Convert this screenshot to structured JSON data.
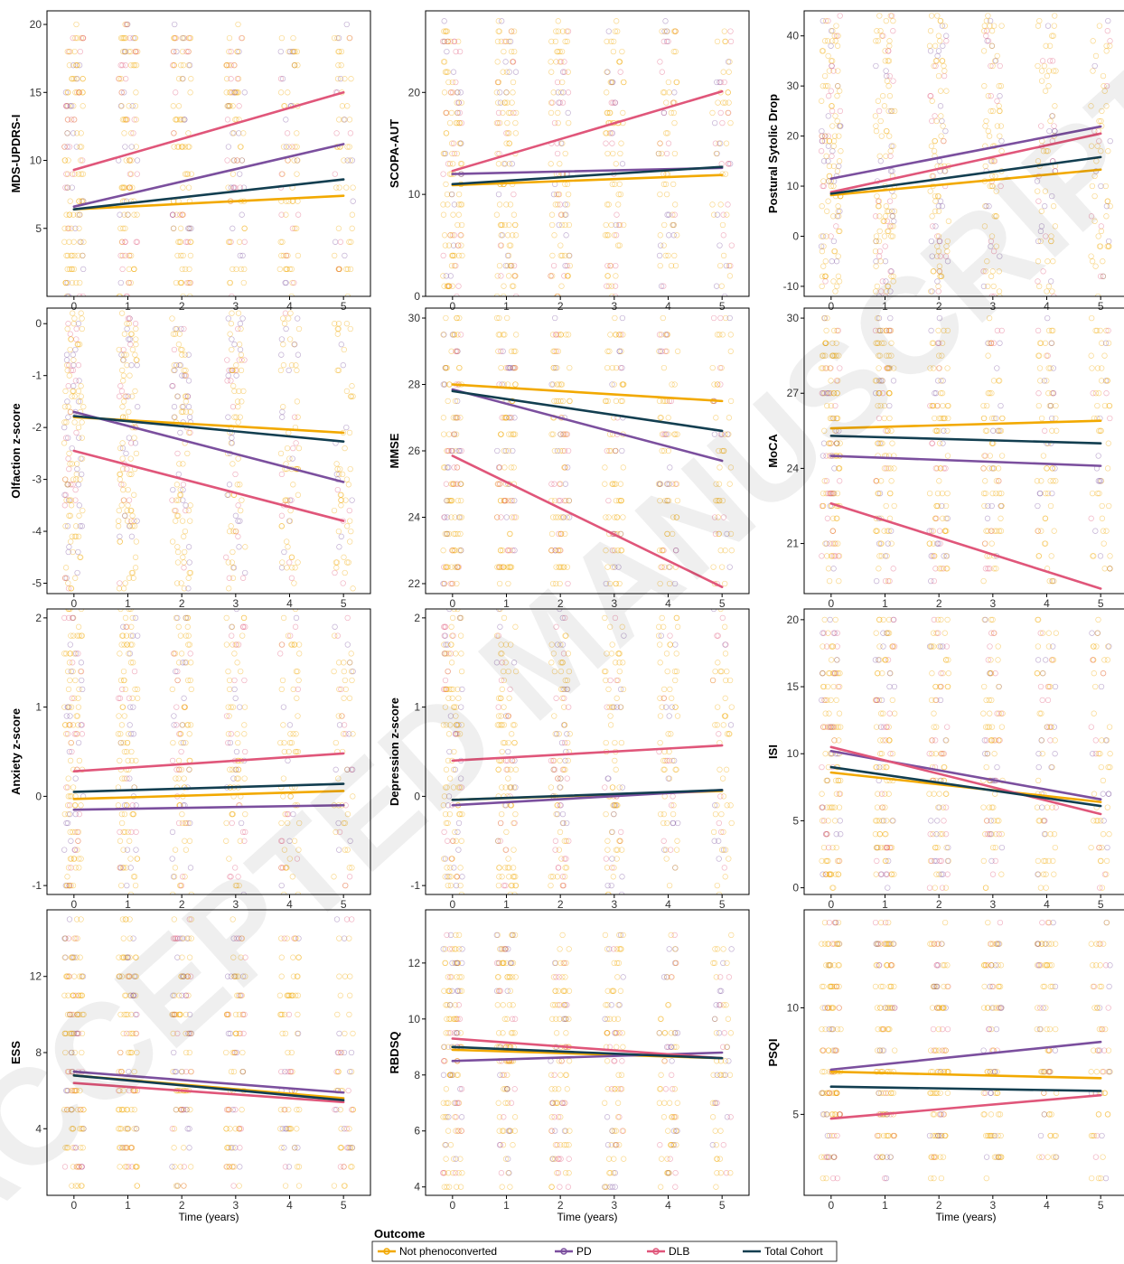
{
  "watermark": "ACCEPTED MANUSCRIPT",
  "colors": {
    "not_phenoconverted": "#F2A900",
    "pd": "#7B4F9E",
    "dlb": "#E0567A",
    "total_cohort": "#123E50",
    "jitter_mix": [
      "#F2A900",
      "#F2A900",
      "#F2A900",
      "#F2A900",
      "#7B4F9E",
      "#E0567A"
    ]
  },
  "legend": {
    "title": "Outcome",
    "items": [
      "Not phenoconverted",
      "PD",
      "DLB",
      "Total Cohort"
    ]
  },
  "chart_data": [
    {
      "type": "scatter",
      "ylabel": "MDS-UPDRS-I",
      "xlabel": "",
      "x_ticks": [
        0,
        1,
        2,
        3,
        4,
        5
      ],
      "xlim": [
        -0.5,
        5.5
      ],
      "ylim": [
        0,
        21
      ],
      "y_ticks": [
        5,
        10,
        15,
        20
      ],
      "point_range": [
        0,
        20
      ],
      "point_step": 1,
      "series": [
        {
          "name": "Not phenoconverted",
          "start": 6.4,
          "end": 7.4
        },
        {
          "name": "PD",
          "start": 6.6,
          "end": 11.2
        },
        {
          "name": "DLB",
          "start": 9.3,
          "end": 15.0
        },
        {
          "name": "Total Cohort",
          "start": 6.4,
          "end": 8.6
        }
      ]
    },
    {
      "type": "scatter",
      "ylabel": "SCOPA-AUT",
      "xlabel": "",
      "x_ticks": [
        0,
        1,
        2,
        3,
        4,
        5
      ],
      "xlim": [
        -0.5,
        5.5
      ],
      "ylim": [
        0,
        28
      ],
      "y_ticks": [
        0,
        10,
        20
      ],
      "point_range": [
        0,
        27
      ],
      "point_step": 1,
      "series": [
        {
          "name": "Not phenoconverted",
          "start": 10.9,
          "end": 11.9
        },
        {
          "name": "PD",
          "start": 12.0,
          "end": 12.6
        },
        {
          "name": "DLB",
          "start": 12.3,
          "end": 20.1
        },
        {
          "name": "Total Cohort",
          "start": 11.0,
          "end": 12.7
        }
      ]
    },
    {
      "type": "scatter",
      "ylabel": "Postural Sytolic Drop",
      "xlabel": "",
      "x_ticks": [
        0,
        1,
        2,
        3,
        4,
        5
      ],
      "xlim": [
        -0.5,
        5.5
      ],
      "ylim": [
        -12,
        45
      ],
      "y_ticks": [
        -10,
        0,
        10,
        20,
        30,
        40
      ],
      "point_range": [
        -12,
        44
      ],
      "point_step": 1,
      "series": [
        {
          "name": "Not phenoconverted",
          "start": 8.2,
          "end": 13.3
        },
        {
          "name": "PD",
          "start": 11.5,
          "end": 21.9
        },
        {
          "name": "DLB",
          "start": 8.8,
          "end": 20.5
        },
        {
          "name": "Total Cohort",
          "start": 8.5,
          "end": 15.8
        }
      ]
    },
    {
      "type": "scatter",
      "ylabel": "Olfaction z-score",
      "xlabel": "",
      "x_ticks": [
        0,
        1,
        2,
        3,
        4,
        5
      ],
      "xlim": [
        -0.5,
        5.5
      ],
      "ylim": [
        -5.2,
        0.3
      ],
      "y_ticks": [
        -5,
        -4,
        -3,
        -2,
        -1,
        0
      ],
      "point_range": [
        -5.1,
        0.2
      ],
      "point_step": 0.1,
      "series": [
        {
          "name": "Not phenoconverted",
          "start": -1.8,
          "end": -2.1
        },
        {
          "name": "PD",
          "start": -1.7,
          "end": -3.05
        },
        {
          "name": "DLB",
          "start": -2.45,
          "end": -3.8
        },
        {
          "name": "Total Cohort",
          "start": -1.78,
          "end": -2.27
        }
      ]
    },
    {
      "type": "scatter",
      "ylabel": "MMSE",
      "xlabel": "",
      "x_ticks": [
        0,
        1,
        2,
        3,
        4,
        5
      ],
      "xlim": [
        -0.5,
        5.5
      ],
      "ylim": [
        21.7,
        30.3
      ],
      "y_ticks": [
        22,
        24,
        26,
        28,
        30
      ],
      "point_range": [
        22,
        30
      ],
      "point_step": 0.5,
      "series": [
        {
          "name": "Not phenoconverted",
          "start": 28.0,
          "end": 27.5
        },
        {
          "name": "PD",
          "start": 27.85,
          "end": 25.7
        },
        {
          "name": "DLB",
          "start": 25.85,
          "end": 21.9
        },
        {
          "name": "Total Cohort",
          "start": 27.8,
          "end": 26.6
        }
      ]
    },
    {
      "type": "scatter",
      "ylabel": "MoCA",
      "xlabel": "",
      "x_ticks": [
        0,
        1,
        2,
        3,
        4,
        5
      ],
      "xlim": [
        -0.5,
        5.5
      ],
      "ylim": [
        19,
        30.4
      ],
      "y_ticks": [
        21,
        24,
        27,
        30
      ],
      "point_range": [
        19.5,
        30
      ],
      "point_step": 0.5,
      "series": [
        {
          "name": "Not phenoconverted",
          "start": 25.6,
          "end": 25.9
        },
        {
          "name": "PD",
          "start": 24.5,
          "end": 24.1
        },
        {
          "name": "DLB",
          "start": 22.6,
          "end": 19.2
        },
        {
          "name": "Total Cohort",
          "start": 25.3,
          "end": 25.0
        }
      ]
    },
    {
      "type": "scatter",
      "ylabel": "Anxiety z-score",
      "xlabel": "",
      "x_ticks": [
        0,
        1,
        2,
        3,
        4,
        5
      ],
      "xlim": [
        -0.5,
        5.5
      ],
      "ylim": [
        -1.1,
        2.1
      ],
      "y_ticks": [
        -1,
        0,
        1,
        2
      ],
      "point_range": [
        -1.1,
        2.1
      ],
      "point_step": 0.1,
      "series": [
        {
          "name": "Not phenoconverted",
          "start": -0.03,
          "end": 0.06
        },
        {
          "name": "PD",
          "start": -0.15,
          "end": -0.1
        },
        {
          "name": "DLB",
          "start": 0.28,
          "end": 0.48
        },
        {
          "name": "Total Cohort",
          "start": 0.05,
          "end": 0.14
        }
      ]
    },
    {
      "type": "scatter",
      "ylabel": "Depression z-score",
      "xlabel": "",
      "x_ticks": [
        0,
        1,
        2,
        3,
        4,
        5
      ],
      "xlim": [
        -0.5,
        5.5
      ],
      "ylim": [
        -1.1,
        2.1
      ],
      "y_ticks": [
        -1,
        0,
        1,
        2
      ],
      "point_range": [
        -1.1,
        2.1
      ],
      "point_step": 0.1,
      "series": [
        {
          "name": "Not phenoconverted",
          "start": -0.04,
          "end": 0.06
        },
        {
          "name": "PD",
          "start": -0.1,
          "end": 0.07
        },
        {
          "name": "DLB",
          "start": 0.4,
          "end": 0.57
        },
        {
          "name": "Total Cohort",
          "start": -0.04,
          "end": 0.07
        }
      ]
    },
    {
      "type": "scatter",
      "ylabel": "ISI",
      "xlabel": "",
      "x_ticks": [
        0,
        1,
        2,
        3,
        4,
        5
      ],
      "xlim": [
        -0.5,
        5.5
      ],
      "ylim": [
        -0.5,
        20.8
      ],
      "y_ticks": [
        0,
        5,
        10,
        15,
        20
      ],
      "point_range": [
        0,
        20
      ],
      "point_step": 1,
      "series": [
        {
          "name": "Not phenoconverted",
          "start": 8.6,
          "end": 6.4
        },
        {
          "name": "PD",
          "start": 10.2,
          "end": 6.6
        },
        {
          "name": "DLB",
          "start": 10.5,
          "end": 5.5
        },
        {
          "name": "Total Cohort",
          "start": 9.0,
          "end": 6.1
        }
      ]
    },
    {
      "type": "scatter",
      "ylabel": "ESS",
      "xlabel": "Time (years)",
      "x_ticks": [
        0,
        1,
        2,
        3,
        4,
        5
      ],
      "xlim": [
        -0.5,
        5.5
      ],
      "ylim": [
        0.5,
        15.5
      ],
      "y_ticks": [
        4,
        8,
        12
      ],
      "point_range": [
        1,
        15
      ],
      "point_step": 1,
      "series": [
        {
          "name": "Not phenoconverted",
          "start": 6.8,
          "end": 5.6
        },
        {
          "name": "PD",
          "start": 7.0,
          "end": 5.9
        },
        {
          "name": "DLB",
          "start": 6.4,
          "end": 5.4
        },
        {
          "name": "Total Cohort",
          "start": 6.8,
          "end": 5.5
        }
      ]
    },
    {
      "type": "scatter",
      "ylabel": "RBDSQ",
      "xlabel": "Time (years)",
      "x_ticks": [
        0,
        1,
        2,
        3,
        4,
        5
      ],
      "xlim": [
        -0.5,
        5.5
      ],
      "ylim": [
        3.7,
        13.9
      ],
      "y_ticks": [
        4,
        6,
        8,
        10,
        12
      ],
      "point_range": [
        4,
        13
      ],
      "point_step": 0.5,
      "series": [
        {
          "name": "Not phenoconverted",
          "start": 8.9,
          "end": 8.6
        },
        {
          "name": "PD",
          "start": 8.5,
          "end": 8.8
        },
        {
          "name": "DLB",
          "start": 9.3,
          "end": 8.6
        },
        {
          "name": "Total Cohort",
          "start": 9.0,
          "end": 8.6
        }
      ]
    },
    {
      "type": "scatter",
      "ylabel": "PSQI",
      "xlabel": "Time (years)",
      "x_ticks": [
        0,
        1,
        2,
        3,
        4,
        5
      ],
      "xlim": [
        -0.5,
        5.5
      ],
      "ylim": [
        1.2,
        14.6
      ],
      "y_ticks": [
        5,
        10
      ],
      "point_range": [
        2,
        14
      ],
      "point_step": 1,
      "series": [
        {
          "name": "Not phenoconverted",
          "start": 7.0,
          "end": 6.7
        },
        {
          "name": "PD",
          "start": 7.1,
          "end": 8.4
        },
        {
          "name": "DLB",
          "start": 4.8,
          "end": 5.9
        },
        {
          "name": "Total Cohort",
          "start": 6.3,
          "end": 6.1
        }
      ]
    }
  ]
}
